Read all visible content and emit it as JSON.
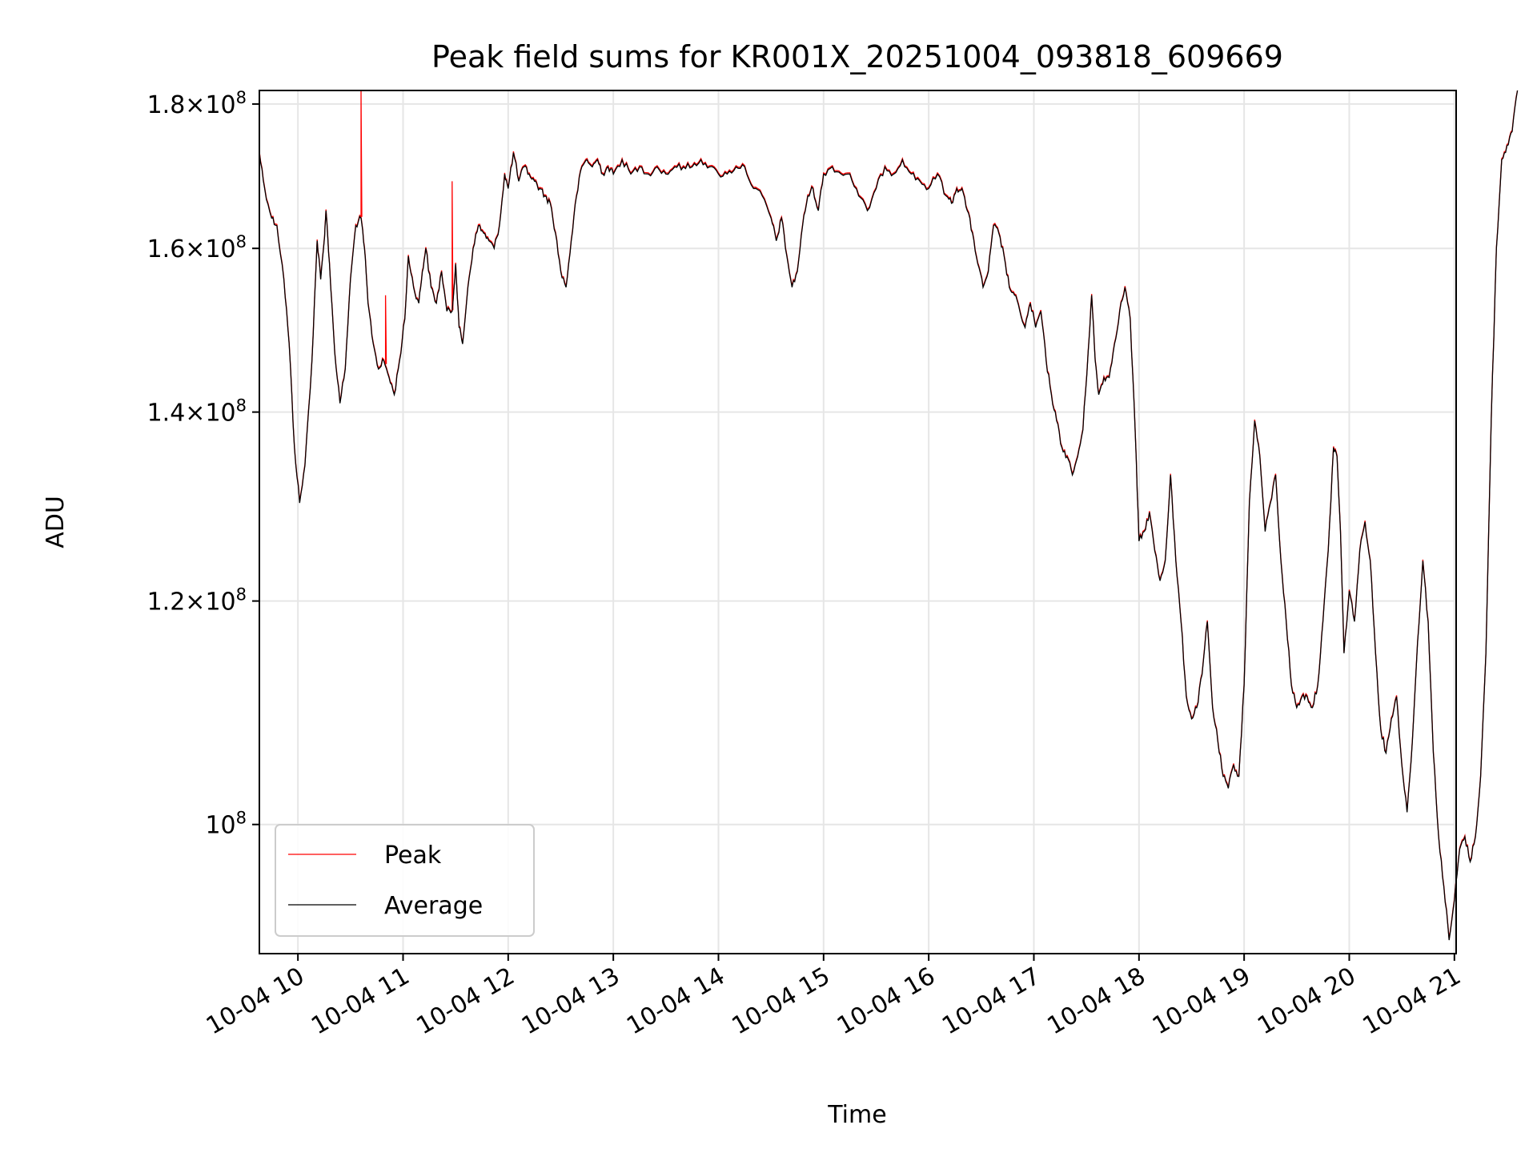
{
  "chart_data": {
    "type": "line",
    "title": "Peak field sums for KR001X_20251004_093818_609669",
    "xlabel": "Time",
    "ylabel": "ADU",
    "y_scale": "log",
    "xlim": [
      "2025-10-04T09:38",
      "2025-10-04T21:01"
    ],
    "ylim": [
      90000000,
      182000000
    ],
    "x_ticks": [
      "10-04 10",
      "10-04 11",
      "10-04 12",
      "10-04 13",
      "10-04 14",
      "10-04 15",
      "10-04 16",
      "10-04 17",
      "10-04 18",
      "10-04 19",
      "10-04 20",
      "10-04 21"
    ],
    "y_ticks": [
      {
        "value": 100000000,
        "mantissa": "",
        "exponent": "8"
      },
      {
        "value": 120000000,
        "mantissa": "1.2",
        "exponent": "8"
      },
      {
        "value": 140000000,
        "mantissa": "1.4",
        "exponent": "8"
      },
      {
        "value": 160000000,
        "mantissa": "1.6",
        "exponent": "8"
      },
      {
        "value": 180000000,
        "mantissa": "1.8",
        "exponent": "8"
      }
    ],
    "grid": true,
    "legend_position": "lower-left",
    "average": {
      "name": "Average",
      "color": "#000000",
      "points": [
        [
          "09:38",
          173
        ],
        [
          "09:41",
          168
        ],
        [
          "09:45",
          164
        ],
        [
          "09:48",
          163
        ],
        [
          "09:52",
          156
        ],
        [
          "09:55",
          148
        ],
        [
          "09:58",
          136
        ],
        [
          "10:01",
          130
        ],
        [
          "10:04",
          134
        ],
        [
          "10:08",
          146
        ],
        [
          "10:11",
          161
        ],
        [
          "10:13",
          156
        ],
        [
          "10:15",
          161
        ],
        [
          "10:16",
          165
        ],
        [
          "10:18",
          158
        ],
        [
          "10:21",
          147
        ],
        [
          "10:24",
          141
        ],
        [
          "10:27",
          145
        ],
        [
          "10:30",
          156
        ],
        [
          "10:33",
          163
        ],
        [
          "10:36",
          164
        ],
        [
          "10:38",
          160
        ],
        [
          "10:40",
          153
        ],
        [
          "10:43",
          148
        ],
        [
          "10:46",
          145
        ],
        [
          "10:49",
          146
        ],
        [
          "10:52",
          144
        ],
        [
          "10:55",
          142
        ],
        [
          "10:58",
          146
        ],
        [
          "11:01",
          151
        ],
        [
          "11:03",
          159
        ],
        [
          "11:06",
          155
        ],
        [
          "11:09",
          153
        ],
        [
          "11:11",
          157
        ],
        [
          "11:13",
          160
        ],
        [
          "11:16",
          155
        ],
        [
          "11:19",
          153
        ],
        [
          "11:22",
          157
        ],
        [
          "11:25",
          152
        ],
        [
          "11:28",
          152
        ],
        [
          "11:30",
          158
        ],
        [
          "11:32",
          150
        ],
        [
          "11:34",
          148
        ],
        [
          "11:37",
          155
        ],
        [
          "11:40",
          160
        ],
        [
          "11:43",
          163
        ],
        [
          "11:46",
          162
        ],
        [
          "11:49",
          161
        ],
        [
          "11:52",
          160
        ],
        [
          "11:55",
          163
        ],
        [
          "11:58",
          170
        ],
        [
          "12:00",
          168
        ],
        [
          "12:03",
          173
        ],
        [
          "12:06",
          169
        ],
        [
          "12:09",
          171
        ],
        [
          "12:12",
          170
        ],
        [
          "12:15",
          169
        ],
        [
          "12:18",
          168
        ],
        [
          "12:21",
          167
        ],
        [
          "12:24",
          166
        ],
        [
          "12:27",
          162
        ],
        [
          "12:30",
          157
        ],
        [
          "12:33",
          155
        ],
        [
          "12:36",
          161
        ],
        [
          "12:39",
          167
        ],
        [
          "12:42",
          171
        ],
        [
          "12:45",
          172
        ],
        [
          "12:48",
          171
        ],
        [
          "12:51",
          172
        ],
        [
          "12:54",
          170
        ],
        [
          "12:57",
          171
        ],
        [
          "13:00",
          170
        ],
        [
          "13:05",
          172
        ],
        [
          "13:10",
          170
        ],
        [
          "13:15",
          171
        ],
        [
          "13:20",
          170
        ],
        [
          "13:25",
          171
        ],
        [
          "13:30",
          170
        ],
        [
          "13:35",
          171
        ],
        [
          "13:40",
          171
        ],
        [
          "13:45",
          171
        ],
        [
          "13:50",
          172
        ],
        [
          "13:55",
          171
        ],
        [
          "14:00",
          170
        ],
        [
          "14:05",
          170
        ],
        [
          "14:10",
          171
        ],
        [
          "14:15",
          171
        ],
        [
          "14:20",
          168
        ],
        [
          "14:25",
          167
        ],
        [
          "14:30",
          164
        ],
        [
          "14:33",
          161
        ],
        [
          "14:36",
          164
        ],
        [
          "14:39",
          159
        ],
        [
          "14:42",
          155
        ],
        [
          "14:45",
          157
        ],
        [
          "14:48",
          163
        ],
        [
          "14:51",
          167
        ],
        [
          "14:54",
          168
        ],
        [
          "14:57",
          165
        ],
        [
          "15:00",
          170
        ],
        [
          "15:05",
          171
        ],
        [
          "15:10",
          170
        ],
        [
          "15:15",
          170
        ],
        [
          "15:20",
          167
        ],
        [
          "15:25",
          165
        ],
        [
          "15:30",
          168
        ],
        [
          "15:35",
          171
        ],
        [
          "15:40",
          170
        ],
        [
          "15:45",
          172
        ],
        [
          "15:50",
          170
        ],
        [
          "15:55",
          169
        ],
        [
          "16:00",
          168
        ],
        [
          "16:05",
          170
        ],
        [
          "16:10",
          167
        ],
        [
          "16:13",
          166
        ],
        [
          "16:16",
          168
        ],
        [
          "16:19",
          168
        ],
        [
          "16:22",
          165
        ],
        [
          "16:25",
          162
        ],
        [
          "16:28",
          158
        ],
        [
          "16:31",
          155
        ],
        [
          "16:34",
          157
        ],
        [
          "16:37",
          163
        ],
        [
          "16:40",
          162
        ],
        [
          "16:43",
          159
        ],
        [
          "16:46",
          155
        ],
        [
          "16:49",
          154
        ],
        [
          "16:52",
          152
        ],
        [
          "16:55",
          150
        ],
        [
          "16:58",
          153
        ],
        [
          "17:01",
          150
        ],
        [
          "17:04",
          152
        ],
        [
          "17:07",
          146
        ],
        [
          "17:10",
          142
        ],
        [
          "17:13",
          139
        ],
        [
          "17:16",
          136
        ],
        [
          "17:19",
          135
        ],
        [
          "17:22",
          133
        ],
        [
          "17:25",
          135
        ],
        [
          "17:28",
          138
        ],
        [
          "17:31",
          147
        ],
        [
          "17:33",
          154
        ],
        [
          "17:35",
          146
        ],
        [
          "17:37",
          142
        ],
        [
          "17:40",
          144
        ],
        [
          "17:43",
          144
        ],
        [
          "17:46",
          148
        ],
        [
          "17:49",
          152
        ],
        [
          "17:52",
          155
        ],
        [
          "17:55",
          151
        ],
        [
          "17:58",
          137
        ],
        [
          "18:00",
          126
        ],
        [
          "18:03",
          127
        ],
        [
          "18:06",
          129
        ],
        [
          "18:09",
          125
        ],
        [
          "18:12",
          122
        ],
        [
          "18:15",
          124
        ],
        [
          "18:18",
          133
        ],
        [
          "18:21",
          124
        ],
        [
          "18:24",
          118
        ],
        [
          "18:27",
          111
        ],
        [
          "18:30",
          109
        ],
        [
          "18:33",
          110
        ],
        [
          "18:36",
          113
        ],
        [
          "18:39",
          118
        ],
        [
          "18:42",
          110
        ],
        [
          "18:45",
          107
        ],
        [
          "18:48",
          104
        ],
        [
          "18:51",
          103
        ],
        [
          "18:54",
          105
        ],
        [
          "18:57",
          104
        ],
        [
          "19:00",
          112
        ],
        [
          "19:03",
          130
        ],
        [
          "19:06",
          139
        ],
        [
          "19:09",
          135
        ],
        [
          "19:12",
          127
        ],
        [
          "19:15",
          130
        ],
        [
          "19:18",
          133
        ],
        [
          "19:21",
          124
        ],
        [
          "19:24",
          118
        ],
        [
          "19:27",
          112
        ],
        [
          "19:30",
          110
        ],
        [
          "19:33",
          111
        ],
        [
          "19:36",
          111
        ],
        [
          "19:39",
          110
        ],
        [
          "19:42",
          112
        ],
        [
          "19:45",
          118
        ],
        [
          "19:48",
          125
        ],
        [
          "19:51",
          136
        ],
        [
          "19:53",
          135
        ],
        [
          "19:55",
          127
        ],
        [
          "19:57",
          115
        ],
        [
          "20:00",
          121
        ],
        [
          "20:03",
          118
        ],
        [
          "20:06",
          125
        ],
        [
          "20:09",
          128
        ],
        [
          "20:12",
          124
        ],
        [
          "20:15",
          115
        ],
        [
          "20:18",
          108
        ],
        [
          "20:21",
          106
        ],
        [
          "20:24",
          109
        ],
        [
          "20:27",
          111
        ],
        [
          "20:30",
          105
        ],
        [
          "20:33",
          101
        ],
        [
          "20:36",
          107
        ],
        [
          "20:39",
          116
        ],
        [
          "20:42",
          124
        ],
        [
          "20:45",
          118
        ],
        [
          "20:48",
          106
        ],
        [
          "20:51",
          99
        ],
        [
          "20:54",
          95
        ],
        [
          "20:57",
          91
        ],
        [
          "21:00",
          94
        ],
        [
          "21:03",
          98
        ],
        [
          "21:06",
          99
        ],
        [
          "21:09",
          97
        ],
        [
          "21:12",
          99
        ],
        [
          "21:15",
          104
        ],
        [
          "21:18",
          115
        ],
        [
          "21:21",
          139
        ],
        [
          "21:24",
          160
        ],
        [
          "21:27",
          172
        ],
        [
          "21:30",
          174
        ],
        [
          "21:33",
          176
        ],
        [
          "21:36",
          182
        ]
      ]
    },
    "peak": {
      "name": "Peak",
      "color": "#ff0000",
      "spikes": [
        [
          "10:36",
          183
        ],
        [
          "10:50",
          154
        ],
        [
          "11:28",
          169
        ]
      ]
    }
  }
}
